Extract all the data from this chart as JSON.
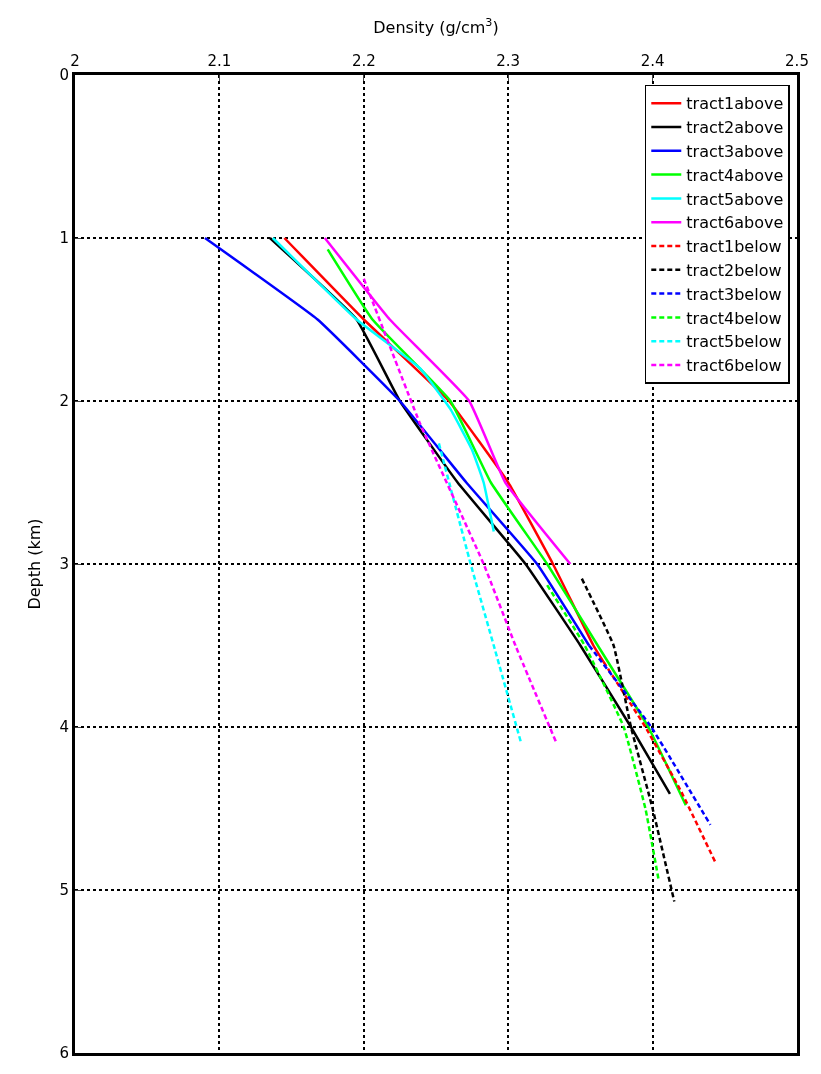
{
  "chart_data": {
    "type": "line",
    "xlabel": "Density (g/cm$^{3}$)",
    "ylabel": "Depth (km)",
    "xlim": [
      2,
      2.5
    ],
    "xticks": [
      2,
      2.1,
      2.2,
      2.3,
      2.4,
      2.5
    ],
    "ylim": [
      6,
      0
    ],
    "yticks": [
      0,
      1,
      2,
      3,
      4,
      5,
      6
    ],
    "grid": true,
    "legend": "top right",
    "marker": "none",
    "series": [
      {
        "name": "tract1above",
        "color": "#ff0000",
        "line_style": "solid",
        "x": [
          2.145,
          2.2,
          2.259,
          2.3,
          2.331,
          2.359,
          2.366
        ],
        "values": [
          1,
          1.5,
          2,
          2.5,
          3,
          3.5,
          3.6
        ]
      },
      {
        "name": "tract2above",
        "color": "#000000",
        "line_style": "solid",
        "x": [
          2.135,
          2.195,
          2.225,
          2.265,
          2.312,
          2.35,
          2.385,
          2.412
        ],
        "values": [
          1,
          1.5,
          2,
          2.5,
          3,
          3.5,
          4,
          4.41
        ]
      },
      {
        "name": "tract3above",
        "color": "#0000ff",
        "line_style": "solid",
        "x": [
          2.09,
          2.168,
          2.225,
          2.271,
          2.32,
          2.356
        ],
        "values": [
          1,
          1.5,
          2,
          2.5,
          3,
          3.5
        ]
      },
      {
        "name": "tract4above",
        "color": "#00ff00",
        "line_style": "solid",
        "x": [
          2.175,
          2.206,
          2.26,
          2.288,
          2.327,
          2.362,
          2.397,
          2.423
        ],
        "values": [
          1.07,
          1.5,
          2,
          2.5,
          3,
          3.5,
          4,
          4.48
        ]
      },
      {
        "name": "tract5above",
        "color": "#00ffff",
        "line_style": "solid",
        "x": [
          2.137,
          2.195,
          2.239,
          2.26,
          2.275,
          2.283,
          2.29
        ],
        "values": [
          1,
          1.5,
          1.8,
          2.05,
          2.3,
          2.5,
          2.8
        ]
      },
      {
        "name": "tract6above",
        "color": "#ff00ff",
        "line_style": "solid",
        "x": [
          2.173,
          2.218,
          2.273,
          2.298,
          2.343
        ],
        "values": [
          1,
          1.5,
          2,
          2.5,
          3
        ]
      },
      {
        "name": "tract1below",
        "color": "#ff0000",
        "line_style": "dashed",
        "x": [
          2.366,
          2.395,
          2.42,
          2.444
        ],
        "values": [
          3.6,
          4,
          4.4,
          4.84
        ]
      },
      {
        "name": "tract2below",
        "color": "#000000",
        "line_style": "dashed",
        "x": [
          2.351,
          2.373,
          2.385,
          2.4,
          2.415
        ],
        "values": [
          3.09,
          3.5,
          4,
          4.5,
          5.07
        ]
      },
      {
        "name": "tract3below",
        "color": "#0000ff",
        "line_style": "dashed",
        "x": [
          2.356,
          2.399,
          2.44
        ],
        "values": [
          3.5,
          4,
          4.6
        ]
      },
      {
        "name": "tract4below",
        "color": "#00ff00",
        "line_style": "dashed",
        "x": [
          2.327,
          2.353,
          2.38,
          2.395,
          2.404
        ],
        "values": [
          3.13,
          3.5,
          4,
          4.5,
          4.93
        ]
      },
      {
        "name": "tract5below",
        "color": "#00ffff",
        "line_style": "dashed",
        "x": [
          2.252,
          2.274,
          2.29,
          2.309
        ],
        "values": [
          2.26,
          3,
          3.5,
          4.1
        ]
      },
      {
        "name": "tract6below",
        "color": "#ff00ff",
        "line_style": "dashed",
        "x": [
          2.2,
          2.239,
          2.283,
          2.305,
          2.333
        ],
        "values": [
          1.25,
          2.14,
          3,
          3.5,
          4.09
        ]
      }
    ]
  }
}
